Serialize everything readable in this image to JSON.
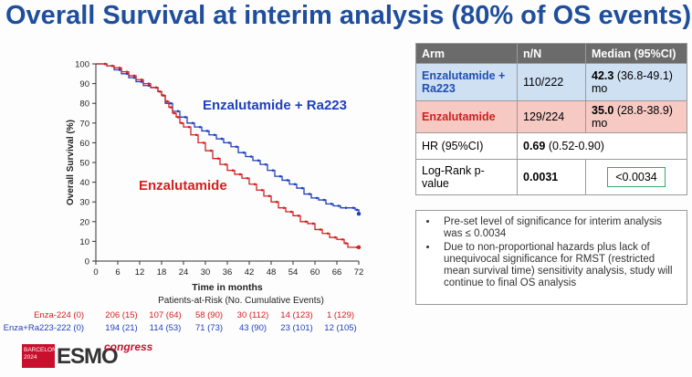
{
  "title": "Overall Survival at interim analysis (80% of OS events)",
  "chart_data": {
    "type": "line",
    "title": "",
    "xlabel": "Time in months",
    "ylabel": "Overall Survival (%)",
    "xlim": [
      0,
      74
    ],
    "ylim": [
      0,
      100
    ],
    "x_ticks": [
      "0",
      "6",
      "12",
      "18",
      "24",
      "30",
      "36",
      "42",
      "48",
      "54",
      "60",
      "66",
      "72"
    ],
    "y_ticks": [
      "0",
      "10",
      "20",
      "30",
      "40",
      "50",
      "60",
      "70",
      "80",
      "90",
      "100"
    ],
    "series": [
      {
        "name": "Enzalutamide + Ra223",
        "color": "#1f3fbf",
        "x": [
          0,
          3,
          5,
          7,
          9,
          11,
          13,
          15,
          17,
          18,
          19,
          21,
          23,
          25,
          27,
          29,
          31,
          33,
          35,
          37,
          39,
          41,
          43,
          45,
          47,
          49,
          51,
          53,
          55,
          57,
          59,
          61,
          63,
          65,
          67,
          69,
          71,
          72
        ],
        "y": [
          100,
          99,
          97,
          95,
          93,
          91,
          89,
          88,
          86,
          84,
          80,
          76,
          73,
          70,
          68,
          66,
          64,
          62,
          60,
          58,
          55,
          53,
          51,
          49,
          46,
          43,
          41,
          39,
          37,
          34,
          32,
          31,
          29,
          28,
          27,
          27,
          26,
          24
        ]
      },
      {
        "name": "Enzalutamide",
        "color": "#d32020",
        "x": [
          0,
          3,
          5,
          7,
          9,
          11,
          13,
          15,
          17,
          18,
          19,
          20,
          21,
          22,
          23,
          24,
          26,
          28,
          30,
          32,
          34,
          36,
          38,
          40,
          42,
          44,
          46,
          48,
          50,
          52,
          54,
          56,
          58,
          60,
          62,
          64,
          66,
          68,
          69,
          72
        ],
        "y": [
          100,
          99,
          98,
          96,
          94,
          92,
          90,
          88,
          86,
          84,
          81,
          78,
          75,
          73,
          70,
          68,
          64,
          60,
          56,
          52,
          49,
          46,
          44,
          42,
          39,
          36,
          33,
          30,
          27,
          25,
          23,
          20,
          19,
          16,
          14,
          12,
          11,
          9,
          7,
          7
        ]
      }
    ],
    "annotations": [
      "Enzalutamide + Ra223",
      "Enzalutamide"
    ],
    "risk_header": "Patients-at-Risk (No. Cumulative Events)",
    "risk_table": [
      {
        "label": "Enza-",
        "values": [
          "224 (0)",
          "206 (15)",
          "107 (64)",
          "58 (90)",
          "30 (112)",
          "14 (123)",
          "1 (129)"
        ]
      },
      {
        "label": "Enza+Ra223-",
        "values": [
          "222 (0)",
          "194 (21)",
          "114 (53)",
          "71 (73)",
          "43 (90)",
          "23 (101)",
          "12 (105)"
        ]
      }
    ]
  },
  "table": {
    "headers": [
      "Arm",
      "n/N",
      "Median  (95%CI)"
    ],
    "rows": [
      {
        "arm": "Enzalutamide + Ra223",
        "n": "110/222",
        "median": "42.3",
        "ci": " (36.8-49.1) mo"
      },
      {
        "arm": "Enzalutamide",
        "n": "129/224",
        "median": "35.0",
        "ci": " (28.8-38.9) mo"
      }
    ],
    "hr_label": "HR (95%CI)",
    "hr_value": "0.69",
    "hr_ci": " (0.52-0.90)",
    "lr_label": "Log-Rank p-value",
    "lr_value": "0.0031",
    "lr_threshold": "<0.0034"
  },
  "notes": [
    "Pre-set level of significance for interim analysis was ≤ 0.0034",
    "Due to non-proportional hazards plus lack of unequivocal significance for RMST (restricted mean survival time) sensitivity analysis, study will continue to final OS analysis"
  ],
  "logo": {
    "line1": "BARCELONA",
    "line2": "2024",
    "brand": "ESMO",
    "suffix": "congress"
  },
  "colors": {
    "title": "#1f4e9c",
    "blue": "#1f3fbf",
    "red": "#d32020"
  }
}
